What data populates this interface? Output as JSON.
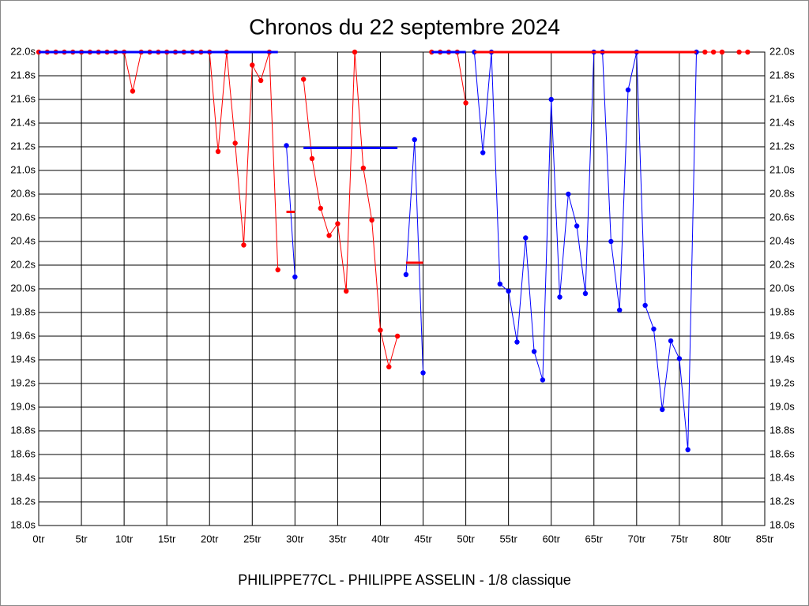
{
  "chart_data": {
    "type": "line",
    "title": "Chronos du 22 septembre 2024",
    "x_label": "PHILIPPE77CL - PHILIPPE ASSELIN - 1/8 classique",
    "x": [
      0,
      1,
      2,
      3,
      4,
      5,
      6,
      7,
      8,
      9,
      10,
      11,
      12,
      13,
      14,
      15,
      16,
      17,
      18,
      19,
      20,
      21,
      22,
      23,
      24,
      25,
      26,
      27,
      28,
      29,
      30,
      31,
      32,
      33,
      34,
      35,
      36,
      37,
      38,
      39,
      40,
      41,
      42,
      43,
      44,
      45,
      46,
      47,
      48,
      49,
      50,
      51,
      52,
      53,
      54,
      55,
      56,
      57,
      58,
      59,
      60,
      61,
      62,
      63,
      64,
      65,
      66,
      67,
      68,
      69,
      70,
      71,
      72,
      73,
      74,
      75,
      76,
      77,
      78,
      79,
      80,
      81,
      82,
      83
    ],
    "series": [
      {
        "color": "#ff0000",
        "markers": true,
        "values": [
          22,
          22,
          22,
          22,
          22,
          22,
          22,
          22,
          22,
          22,
          22,
          21.67,
          22,
          22,
          22,
          22,
          22,
          22,
          22,
          22,
          22,
          21.16,
          22,
          21.23,
          20.37,
          21.89,
          21.76,
          22,
          20.16,
          null,
          null,
          21.77,
          21.1,
          20.68,
          20.45,
          20.55,
          19.98,
          22,
          21.02,
          20.58,
          19.65,
          19.34,
          19.6,
          null,
          null,
          null,
          22,
          22,
          22,
          22,
          21.57,
          null,
          null,
          null,
          null,
          null,
          null,
          null,
          null,
          null,
          null,
          null,
          null,
          null,
          null,
          null,
          null,
          null,
          null,
          null,
          null,
          null,
          null,
          null,
          null,
          null,
          null,
          null,
          22,
          22,
          22,
          null,
          22,
          22
        ]
      },
      {
        "color": "#0000ff",
        "markers": true,
        "values": [
          null,
          null,
          null,
          null,
          null,
          null,
          null,
          null,
          null,
          null,
          null,
          null,
          null,
          null,
          null,
          null,
          null,
          null,
          null,
          null,
          null,
          null,
          null,
          null,
          null,
          null,
          null,
          null,
          null,
          21.21,
          20.1,
          null,
          null,
          null,
          null,
          null,
          null,
          null,
          null,
          null,
          null,
          null,
          null,
          20.12,
          21.26,
          19.29,
          null,
          null,
          null,
          null,
          null,
          22,
          21.15,
          22,
          20.04,
          19.98,
          19.55,
          20.43,
          19.47,
          19.23,
          21.6,
          19.93,
          20.8,
          20.53,
          19.96,
          22,
          22,
          20.4,
          19.82,
          21.68,
          22,
          19.86,
          19.66,
          18.98,
          19.56,
          19.41,
          18.64,
          22,
          null,
          null,
          null,
          null,
          null,
          null
        ]
      },
      {
        "color": "#0000ff",
        "markers": false,
        "x": [
          0,
          28
        ],
        "values": [
          22,
          22
        ]
      },
      {
        "color": "#ff0000",
        "markers": false,
        "x": [
          29,
          30
        ],
        "values": [
          20.65,
          20.65
        ]
      },
      {
        "color": "#0000ff",
        "markers": false,
        "x": [
          31,
          42
        ],
        "values": [
          21.19,
          21.19
        ]
      },
      {
        "color": "#ff0000",
        "markers": false,
        "x": [
          43,
          45
        ],
        "values": [
          20.22,
          20.22
        ]
      },
      {
        "color": "#0000ff",
        "markers": false,
        "x": [
          46,
          50
        ],
        "values": [
          22,
          22
        ]
      },
      {
        "color": "#ff0000",
        "markers": false,
        "x": [
          51,
          77
        ],
        "values": [
          22,
          22
        ]
      }
    ],
    "xlim": [
      0,
      85
    ],
    "xticks": [
      {
        "value": 0,
        "label": "0tr"
      },
      {
        "value": 5,
        "label": "5tr"
      },
      {
        "value": 10,
        "label": "10tr"
      },
      {
        "value": 15,
        "label": "15tr"
      },
      {
        "value": 20,
        "label": "20tr"
      },
      {
        "value": 25,
        "label": "25tr"
      },
      {
        "value": 30,
        "label": "30tr"
      },
      {
        "value": 35,
        "label": "35tr"
      },
      {
        "value": 40,
        "label": "40tr"
      },
      {
        "value": 45,
        "label": "45tr"
      },
      {
        "value": 50,
        "label": "50tr"
      },
      {
        "value": 55,
        "label": "55tr"
      },
      {
        "value": 60,
        "label": "60tr"
      },
      {
        "value": 65,
        "label": "65tr"
      },
      {
        "value": 70,
        "label": "70tr"
      },
      {
        "value": 75,
        "label": "75tr"
      },
      {
        "value": 80,
        "label": "80tr"
      },
      {
        "value": 85,
        "label": "85tr"
      }
    ],
    "ylim": [
      18,
      22
    ],
    "yticks": [
      {
        "value": 18,
        "label": "18.0s"
      },
      {
        "value": 18.2,
        "label": "18.2s"
      },
      {
        "value": 18.4,
        "label": "18.4s"
      },
      {
        "value": 18.6,
        "label": "18.6s"
      },
      {
        "value": 18.8,
        "label": "18.8s"
      },
      {
        "value": 19,
        "label": "19.0s"
      },
      {
        "value": 19.2,
        "label": "19.2s"
      },
      {
        "value": 19.4,
        "label": "19.4s"
      },
      {
        "value": 19.6,
        "label": "19.6s"
      },
      {
        "value": 19.8,
        "label": "19.8s"
      },
      {
        "value": 20,
        "label": "20.0s"
      },
      {
        "value": 20.2,
        "label": "20.2s"
      },
      {
        "value": 20.4,
        "label": "20.4s"
      },
      {
        "value": 20.6,
        "label": "20.6s"
      },
      {
        "value": 20.8,
        "label": "20.8s"
      },
      {
        "value": 21,
        "label": "21.0s"
      },
      {
        "value": 21.2,
        "label": "21.2s"
      },
      {
        "value": 21.4,
        "label": "21.4s"
      },
      {
        "value": 21.6,
        "label": "21.6s"
      },
      {
        "value": 21.8,
        "label": "21.8s"
      },
      {
        "value": 22,
        "label": "22.0s"
      }
    ],
    "grid": true
  }
}
